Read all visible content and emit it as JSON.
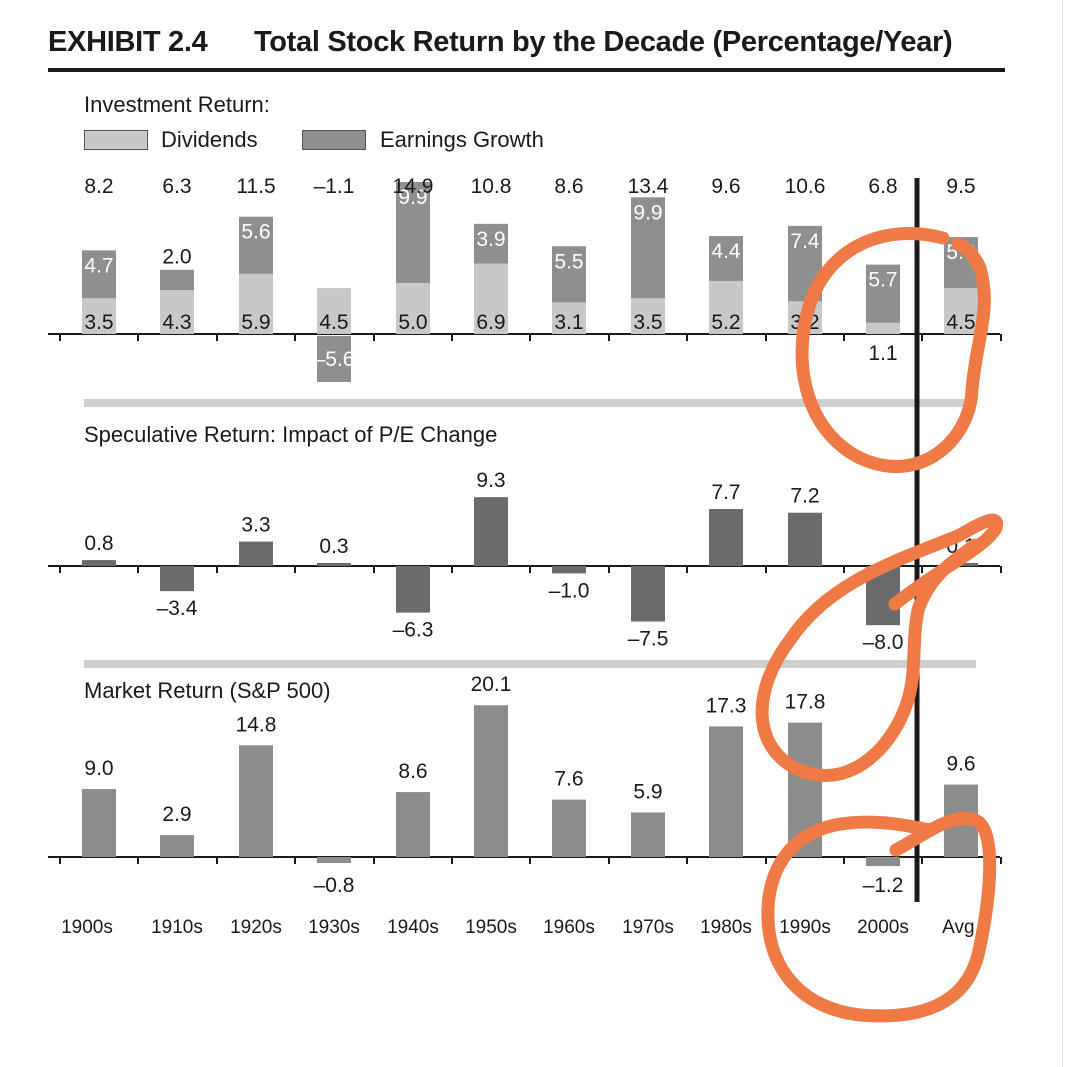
{
  "header": {
    "exhibit": "EXHIBIT 2.4",
    "title": "Total Stock Return by the Decade (Percentage/Year)"
  },
  "legend": {
    "heading": "Investment Return:",
    "dividends": "Dividends",
    "earnings": "Earnings Growth"
  },
  "colors": {
    "dividends": "#c8c8c8",
    "earnings": "#8f8f8f",
    "speculative": "#6b6b6b",
    "market": "#8c8c8c",
    "separator": "#cfcfcf",
    "annotation": "#f07a45"
  },
  "chart_data": [
    {
      "type": "bar",
      "title": "Investment Return:",
      "stacked": true,
      "categories": [
        "1900s",
        "1910s",
        "1920s",
        "1930s",
        "1940s",
        "1950s",
        "1960s",
        "1970s",
        "1980s",
        "1990s",
        "2000s",
        "Avg."
      ],
      "totals": [
        "8.2",
        "6.3",
        "11.5",
        "–1.1",
        "14.9",
        "10.8",
        "8.6",
        "13.4",
        "9.6",
        "10.6",
        "6.8",
        "9.5"
      ],
      "series": [
        {
          "name": "Dividends",
          "values": [
            3.5,
            4.3,
            5.9,
            4.5,
            5.0,
            6.9,
            3.1,
            3.5,
            5.2,
            3.2,
            1.1,
            4.5
          ],
          "labels": [
            "3.5",
            "4.3",
            "5.9",
            "4.5",
            "5.0",
            "6.9",
            "3.1",
            "3.5",
            "5.2",
            "3.2",
            "1.1",
            "4.5"
          ]
        },
        {
          "name": "Earnings Growth",
          "values": [
            4.7,
            2.0,
            5.6,
            -5.6,
            9.9,
            3.9,
            5.5,
            9.9,
            4.4,
            7.4,
            5.7,
            5.0
          ],
          "labels": [
            "4.7",
            "2.0",
            "5.6",
            "–5.6",
            "9.9",
            "3.9",
            "5.5",
            "9.9",
            "4.4",
            "7.4",
            "5.7",
            "5.0"
          ]
        }
      ]
    },
    {
      "type": "bar",
      "title": "Speculative Return: Impact of P/E Change",
      "categories": [
        "1900s",
        "1910s",
        "1920s",
        "1930s",
        "1940s",
        "1950s",
        "1960s",
        "1970s",
        "1980s",
        "1990s",
        "2000s",
        "Avg."
      ],
      "values": [
        0.8,
        -3.4,
        3.3,
        0.3,
        -6.3,
        9.3,
        -1.0,
        -7.5,
        7.7,
        7.2,
        -8.0,
        0.1
      ],
      "labels": [
        "0.8",
        "–3.4",
        "3.3",
        "0.3",
        "–6.3",
        "9.3",
        "–1.0",
        "–7.5",
        "7.7",
        "7.2",
        "–8.0",
        "0.1"
      ]
    },
    {
      "type": "bar",
      "title": "Market Return (S&P 500)",
      "categories": [
        "1900s",
        "1910s",
        "1920s",
        "1930s",
        "1940s",
        "1950s",
        "1960s",
        "1970s",
        "1980s",
        "1990s",
        "2000s",
        "Avg."
      ],
      "values": [
        9.0,
        2.9,
        14.8,
        -0.8,
        8.6,
        20.1,
        7.6,
        5.9,
        17.3,
        17.8,
        -1.2,
        9.6
      ],
      "labels": [
        "9.0",
        "2.9",
        "14.8",
        "–0.8",
        "8.6",
        "20.1",
        "7.6",
        "5.9",
        "17.3",
        "17.8",
        "–1.2",
        "9.6"
      ]
    }
  ]
}
